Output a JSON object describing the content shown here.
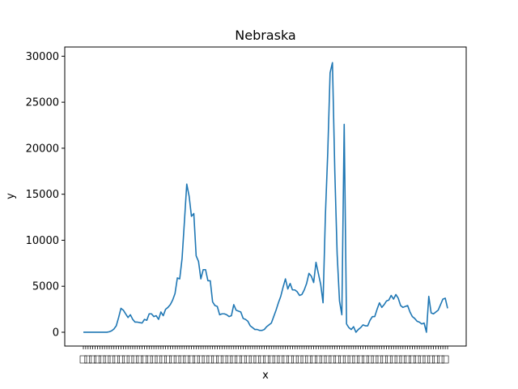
{
  "chart_data": {
    "type": "line",
    "title": "Nebraska",
    "xlabel": "x",
    "ylabel": "y",
    "ylim": [
      -1500,
      31000
    ],
    "yticks": [
      0,
      5000,
      10000,
      15000,
      20000,
      25000,
      30000
    ],
    "grid": false,
    "legend": "none",
    "x_tick_labels_note": "x tick labels are densely overlapping and illegible",
    "series": [
      {
        "color": "#1f77b4",
        "values": [
          0,
          0,
          0,
          0,
          0,
          0,
          0,
          0,
          0,
          0,
          0,
          50,
          150,
          350,
          700,
          1600,
          2600,
          2400,
          2000,
          1600,
          1900,
          1400,
          1100,
          1100,
          1050,
          1000,
          1400,
          1300,
          2000,
          2000,
          1700,
          1800,
          1400,
          2200,
          1800,
          2500,
          2700,
          3000,
          3500,
          4200,
          5900,
          5800,
          8000,
          12000,
          16100,
          14800,
          12600,
          12900,
          8300,
          7700,
          5800,
          6800,
          6800,
          5600,
          5600,
          3300,
          2900,
          2800,
          1900,
          2000,
          2000,
          1900,
          1700,
          1800,
          3000,
          2400,
          2300,
          2200,
          1500,
          1400,
          1200,
          700,
          500,
          300,
          300,
          200,
          200,
          300,
          600,
          800,
          1000,
          1700,
          2400,
          3200,
          3900,
          4900,
          5800,
          4700,
          5300,
          4600,
          4600,
          4400,
          4000,
          4100,
          4600,
          5300,
          6400,
          6100,
          5400,
          7600,
          6400,
          5200,
          3200,
          12700,
          19500,
          28200,
          29300,
          17500,
          8500,
          3400,
          1900,
          22600,
          900,
          500,
          300,
          600,
          0,
          300,
          500,
          800,
          700,
          700,
          1300,
          1700,
          1700,
          2500,
          3200,
          2700,
          3000,
          3400,
          3500,
          4000,
          3600,
          4100,
          3700,
          2900,
          2700,
          2800,
          2900,
          2200,
          1700,
          1500,
          1200,
          1100,
          900,
          1000,
          0,
          3900,
          2100,
          2000,
          2200,
          2400,
          3000,
          3600,
          3700,
          2600
        ]
      }
    ]
  }
}
